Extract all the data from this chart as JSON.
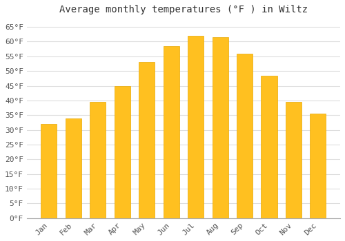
{
  "title": "Average monthly temperatures (°F ) in Wiltz",
  "months": [
    "Jan",
    "Feb",
    "Mar",
    "Apr",
    "May",
    "Jun",
    "Jul",
    "Aug",
    "Sep",
    "Oct",
    "Nov",
    "Dec"
  ],
  "values": [
    32,
    34,
    39.5,
    45,
    53,
    58.5,
    62,
    61.5,
    56,
    48.5,
    39.5,
    35.5
  ],
  "bar_color": "#FFC020",
  "bar_edge_color": "#E8A800",
  "plot_bg_color": "#FFFFFF",
  "fig_bg_color": "#FFFFFF",
  "grid_color": "#DDDDDD",
  "ylim": [
    0,
    68
  ],
  "yticks": [
    0,
    5,
    10,
    15,
    20,
    25,
    30,
    35,
    40,
    45,
    50,
    55,
    60,
    65
  ],
  "title_fontsize": 10,
  "tick_fontsize": 8,
  "bar_width": 0.65
}
